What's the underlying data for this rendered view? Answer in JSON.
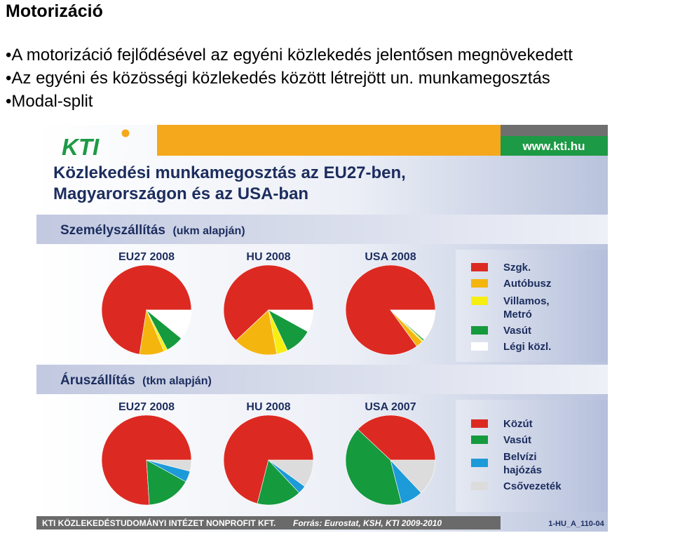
{
  "slide": {
    "title": "Motorizáció",
    "bullets": [
      "A motorizáció fejlődésével az egyéni közlekedés jelentősen megnövekedett",
      "Az egyéni és közösségi közlekedés között létrejött un. munkamegosztás",
      "Modal-split"
    ]
  },
  "figure": {
    "logo_text": "KTI",
    "website": "www.kti.hu",
    "title_line1": "Közlekedési munkamegosztás az EU27-ben,",
    "title_line2": "Magyarországon és az USA-ban",
    "footer_org": "KTI KÖZLEKEDÉSTUDOMÁNYI INTÉZET NONPROFIT KFT.",
    "footer_source": "Forrás: Eurostat, KSH, KTI 2009-2010",
    "footer_code": "1-HU_A_110-04"
  },
  "colors": {
    "orange_bar": "#f5a81c",
    "grey_bar": "#6f6f6f",
    "logo_green": "#1d9a45",
    "title_blue": "#1c2d5e",
    "red": "#dc2a22",
    "orange": "#f5b50f",
    "yellow": "#f6ee10",
    "green": "#159a3e",
    "white": "#ffffff",
    "blue": "#1d9ad8",
    "lightgrey": "#dcdcdc",
    "footer_grey": "#6a6a6a"
  },
  "chart_data": [
    {
      "type": "pie",
      "group": "Személyszállítás",
      "group_unit": "(ukm alapján)",
      "title": "EU27 2008",
      "labels": [
        "Szgk.",
        "Autóbusz",
        "Villamos, Metró",
        "Vasút",
        "Légi közl."
      ],
      "values": [
        72.5,
        8.9,
        1.3,
        6.4,
        10.9
      ]
    },
    {
      "type": "pie",
      "group": "Személyszállítás",
      "title": "HU 2008",
      "labels": [
        "Szgk.",
        "Autóbusz",
        "Villamos, Metró",
        "Vasút",
        "Légi közl."
      ],
      "values": [
        62,
        16,
        4,
        10,
        8
      ]
    },
    {
      "type": "pie",
      "group": "Személyszállítás",
      "title": "USA 2008",
      "labels": [
        "Szgk.",
        "Autóbusz",
        "Villamos, Metró",
        "Vasút",
        "Légi közl."
      ],
      "values": [
        85,
        2.5,
        0.5,
        0.5,
        11.5
      ]
    },
    {
      "type": "pie",
      "group": "Áruszállítás",
      "group_unit": "(tkm alapján)",
      "title": "EU27 2008",
      "labels": [
        "Közút",
        "Vasút",
        "Belvízi hajózás",
        "Csővezeték"
      ],
      "values": [
        76,
        16,
        4,
        4
      ]
    },
    {
      "type": "pie",
      "group": "Áruszállítás",
      "title": "HU 2008",
      "labels": [
        "Közút",
        "Vasút",
        "Belvízi hajózás",
        "Csővezeték"
      ],
      "values": [
        71,
        16,
        3,
        10
      ]
    },
    {
      "type": "pie",
      "group": "Áruszállítás",
      "title": "USA 2007",
      "labels": [
        "Közút",
        "Vasút",
        "Belvízi hajózás",
        "Csővezeték"
      ],
      "values": [
        38,
        41,
        8,
        13
      ]
    }
  ],
  "legend_passenger": {
    "title": "Személyszállítás",
    "unit": "(ukm alapján)",
    "items": [
      {
        "label": "Szgk.",
        "color": "#dc2a22"
      },
      {
        "label": "Autóbusz",
        "color": "#f5b50f"
      },
      {
        "label": "Villamos,",
        "label2": "Metró",
        "color": "#f6ee10"
      },
      {
        "label": "Vasút",
        "color": "#159a3e"
      },
      {
        "label": "Légi közl.",
        "color": "#ffffff"
      }
    ]
  },
  "legend_freight": {
    "title": "Áruszállítás",
    "unit": "(tkm alapján)",
    "items": [
      {
        "label": "Közút",
        "color": "#dc2a22"
      },
      {
        "label": "Vasút",
        "color": "#159a3e"
      },
      {
        "label": "Belvízi",
        "label2": "hajózás",
        "color": "#1d9ad8"
      },
      {
        "label": "Csővezeték",
        "color": "#dcdcdc"
      }
    ]
  }
}
